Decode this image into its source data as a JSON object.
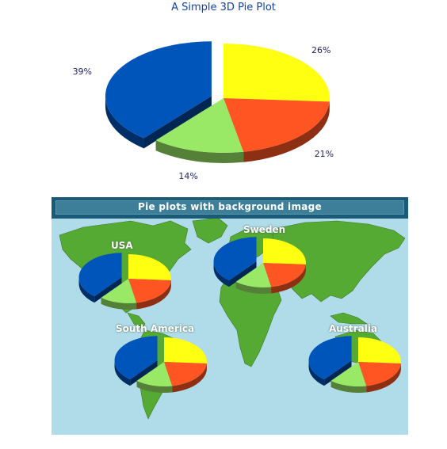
{
  "chart_data": [
    {
      "type": "pie",
      "style": "3d",
      "title": "A Simple 3D Pie Plot",
      "slices": [
        {
          "label": "26%",
          "value": 26,
          "color": "#ffff11"
        },
        {
          "label": "21%",
          "value": 21,
          "color": "#ff5522"
        },
        {
          "label": "14%",
          "value": 14,
          "color": "#99e866"
        },
        {
          "label": "39%",
          "value": 39,
          "color": "#0055bb",
          "exploded": true
        }
      ]
    },
    {
      "type": "pie",
      "style": "3d",
      "title": "Pie plots with background image",
      "background": "world-map",
      "pies": [
        {
          "label": "USA",
          "values": [
            26,
            21,
            14,
            39
          ]
        },
        {
          "label": "Sweden",
          "values": [
            26,
            21,
            14,
            39
          ]
        },
        {
          "label": "South America",
          "values": [
            26,
            21,
            14,
            39
          ]
        },
        {
          "label": "Australia",
          "values": [
            26,
            21,
            14,
            39
          ]
        }
      ],
      "colors": [
        "#ffff11",
        "#ff5522",
        "#99e866",
        "#0055bb"
      ]
    }
  ]
}
